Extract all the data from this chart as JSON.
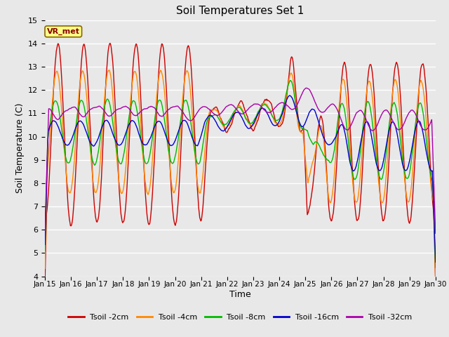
{
  "title": "Soil Temperatures Set 1",
  "xlabel": "Time",
  "ylabel": "Soil Temperature (C)",
  "ylim": [
    4.0,
    15.0
  ],
  "yticks": [
    4.0,
    5.0,
    6.0,
    7.0,
    8.0,
    9.0,
    10.0,
    11.0,
    12.0,
    13.0,
    14.0,
    15.0
  ],
  "xtick_labels": [
    "Jan 15",
    "Jan 16",
    "Jan 17",
    "Jan 18",
    "Jan 19",
    "Jan 20",
    "Jan 21",
    "Jan 22",
    "Jan 23",
    "Jan 24",
    "Jan 25",
    "Jan 26",
    "Jan 27",
    "Jan 28",
    "Jan 29",
    "Jan 30"
  ],
  "colors": {
    "Tsoil -2cm": "#cc0000",
    "Tsoil -4cm": "#ff8800",
    "Tsoil -8cm": "#00bb00",
    "Tsoil -16cm": "#0000cc",
    "Tsoil -32cm": "#aa00aa"
  },
  "legend_label": "VR_met",
  "bg_color": "#e8e8e8",
  "grid_color": "#ffffff"
}
